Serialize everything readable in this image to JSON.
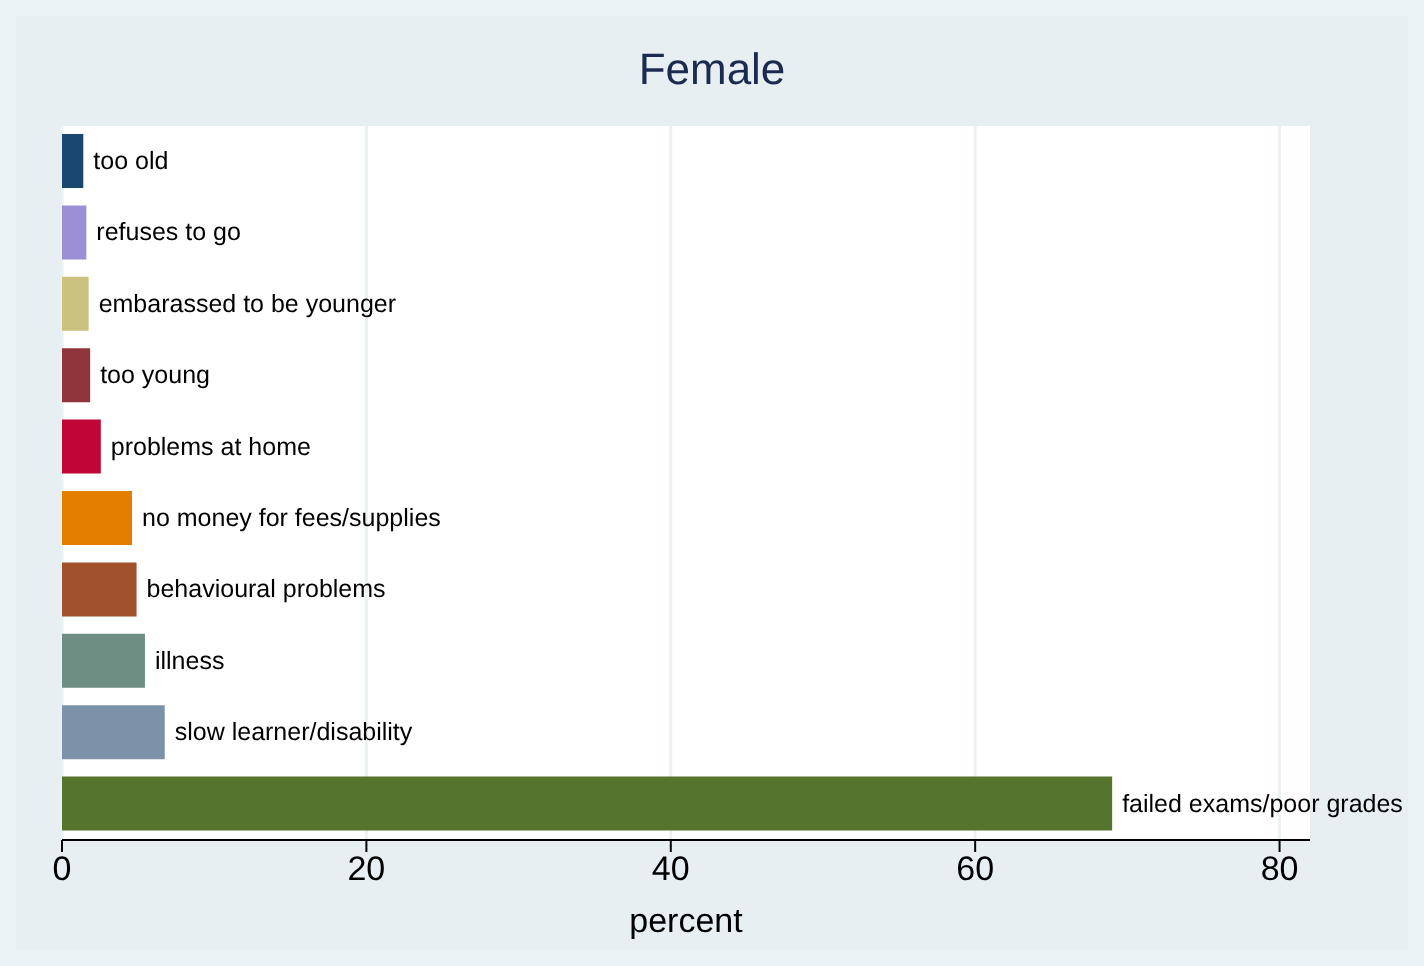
{
  "chart_data": {
    "type": "bar",
    "orientation": "horizontal",
    "title": "Female",
    "xlabel": "percent",
    "categories": [
      "too old",
      "refuses to go",
      "embarassed to be younger",
      "too young",
      "problems at home",
      "no money for fees/supplies",
      "behavioural problems",
      "illness",
      "slow learner/disability",
      "failed exams/poor grades"
    ],
    "values": [
      1.4,
      1.6,
      1.75,
      1.85,
      2.55,
      4.6,
      4.9,
      5.45,
      6.75,
      69.0
    ],
    "colors": [
      "#1a476f",
      "#9c8fd6",
      "#cac27e",
      "#90353b",
      "#c10534",
      "#e37e00",
      "#a0522d",
      "#6e8e84",
      "#7b92a8",
      "#55752f"
    ],
    "xlim": [
      0,
      82
    ],
    "xticks": [
      0,
      20,
      40,
      60,
      80
    ],
    "grid": "x",
    "tick_labels": "x"
  }
}
